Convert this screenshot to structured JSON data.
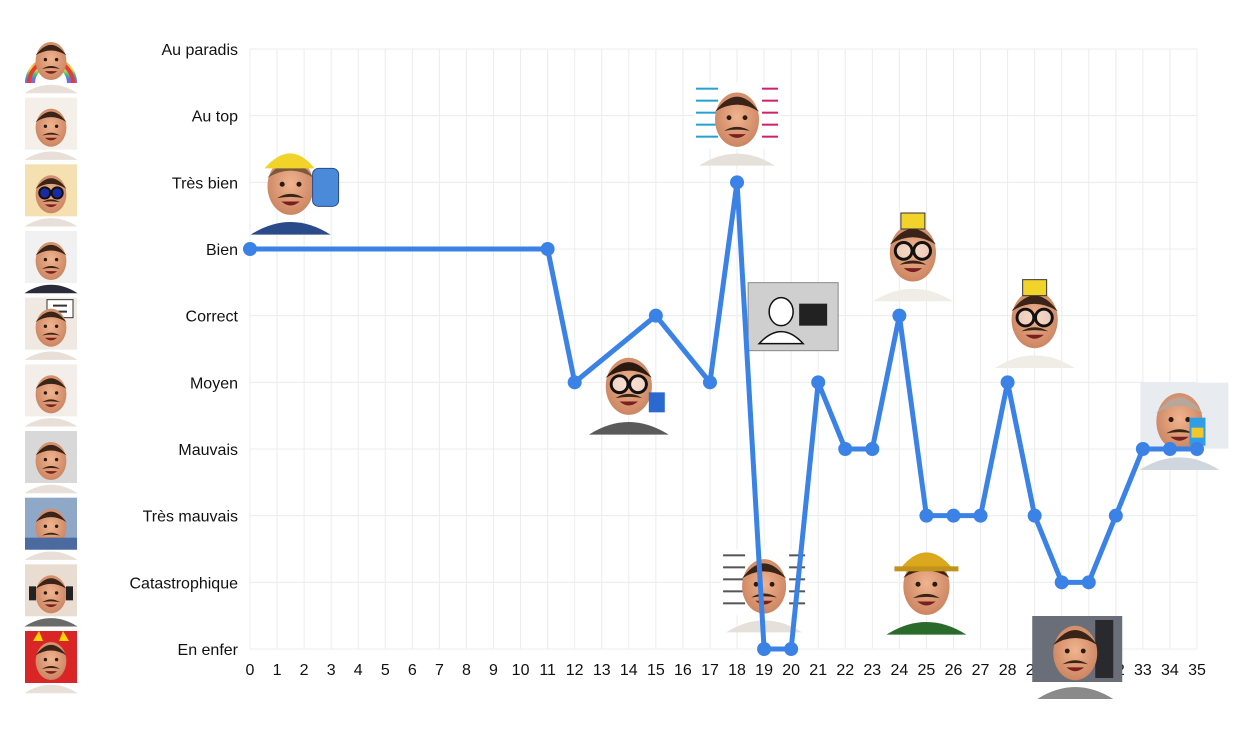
{
  "chart_data": {
    "type": "line",
    "title": "",
    "xlabel": "",
    "ylabel": "",
    "levels": [
      "En enfer",
      "Catastrophique",
      "Très mauvais",
      "Mauvais",
      "Moyen",
      "Correct",
      "Bien",
      "Très bien",
      "Au top",
      "Au paradis"
    ],
    "x_ticks": [
      "0",
      "1",
      "2",
      "3",
      "4",
      "5",
      "6",
      "7",
      "8",
      "9",
      "10",
      "11",
      "12",
      "13",
      "14",
      "15",
      "16",
      "17",
      "18",
      "19",
      "20",
      "21",
      "22",
      "23",
      "24",
      "25",
      "26",
      "27",
      "28",
      "29",
      "30",
      "31",
      "32",
      "33",
      "34",
      "35"
    ],
    "xlim": [
      0,
      35
    ],
    "ylim": [
      0,
      9
    ],
    "grid": true,
    "series": [
      {
        "color": "#3b82e6",
        "points": [
          {
            "x": 0,
            "y": 6
          },
          {
            "x": 11,
            "y": 6
          },
          {
            "x": 12,
            "y": 4
          },
          {
            "x": 15,
            "y": 5
          },
          {
            "x": 17,
            "y": 4
          },
          {
            "x": 18,
            "y": 7
          },
          {
            "x": 19,
            "y": 0
          },
          {
            "x": 20,
            "y": 0
          },
          {
            "x": 21,
            "y": 4
          },
          {
            "x": 22,
            "y": 3
          },
          {
            "x": 23,
            "y": 3
          },
          {
            "x": 24,
            "y": 5
          },
          {
            "x": 25,
            "y": 2
          },
          {
            "x": 26,
            "y": 2
          },
          {
            "x": 27,
            "y": 2
          },
          {
            "x": 28,
            "y": 4
          },
          {
            "x": 29,
            "y": 2
          },
          {
            "x": 30,
            "y": 1
          },
          {
            "x": 31,
            "y": 1
          },
          {
            "x": 32,
            "y": 2
          },
          {
            "x": 33,
            "y": 3
          },
          {
            "x": 34,
            "y": 3
          },
          {
            "x": 35,
            "y": 3
          }
        ]
      }
    ],
    "level_icons": [
      "devil-face-icon",
      "headphones-face-icon",
      "bed-face-icon",
      "crying-face-icon",
      "neutral-face-icon",
      "rating-sign-face-icon",
      "suit-face-icon",
      "sunglasses-face-icon",
      "thumbs-up-face-icon",
      "rainbow-face-icon"
    ],
    "annotations": [
      {
        "x": 1.5,
        "y": 7,
        "icon": "schoolbag-cap-icon"
      },
      {
        "x": 14,
        "y": 4,
        "icon": "glasses-nerd-icon"
      },
      {
        "x": 18,
        "y": 8,
        "icon": "math-thinking-icon"
      },
      {
        "x": 20,
        "y": 5,
        "icon": "computer-desk-icon"
      },
      {
        "x": 19,
        "y": 1,
        "icon": "equations-face-icon"
      },
      {
        "x": 24.5,
        "y": 6,
        "icon": "bac-glasses-icon"
      },
      {
        "x": 25,
        "y": 1,
        "icon": "hard-hat-icon"
      },
      {
        "x": 29,
        "y": 5,
        "icon": "bac-glasses-icon"
      },
      {
        "x": 30.5,
        "y": 0,
        "icon": "machine-room-icon"
      },
      {
        "x": 34.5,
        "y": 3.5,
        "icon": "juice-drink-icon"
      }
    ]
  }
}
